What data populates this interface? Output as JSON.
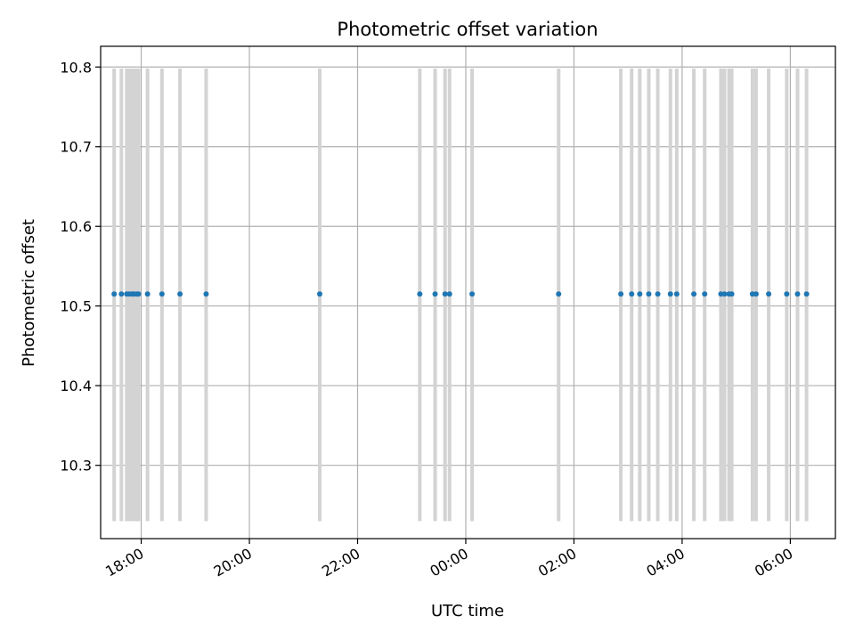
{
  "chart_data": {
    "type": "scatter",
    "title": "Photometric offset variation",
    "xlabel": "UTC time",
    "ylabel": "Photometric offset",
    "x_axis_type": "time",
    "x_date_format": "HH:MM",
    "xlim": [
      "17:15",
      "06:50"
    ],
    "ylim": [
      10.208,
      10.826
    ],
    "x_ticks": [
      "18:00",
      "20:00",
      "22:00",
      "00:00",
      "02:00",
      "04:00",
      "06:00"
    ],
    "y_ticks": [
      "10.3",
      "10.4",
      "10.5",
      "10.6",
      "10.7",
      "10.8"
    ],
    "grid": true,
    "x_tick_rotation": 30,
    "legend": false,
    "colors": {
      "points": "#1f77b4",
      "bands": "#d3d3d3",
      "grid": "#b0b0b0",
      "axes": "#000000"
    },
    "band_range": [
      10.23,
      10.798
    ],
    "series": [
      {
        "x": [
          "17:30",
          "17:38",
          "17:44",
          "17:47",
          "17:50",
          "17:52",
          "17:55",
          "17:57",
          "18:07",
          "18:23",
          "18:43",
          "19:12",
          "21:18",
          "23:09",
          "23:26",
          "23:37",
          "23:42",
          "24:07",
          "25:43",
          "26:52",
          "27:04",
          "27:13",
          "27:23",
          "27:33",
          "27:47",
          "27:54",
          "28:13",
          "28:25",
          "28:43",
          "28:47",
          "28:52",
          "28:55",
          "29:18",
          "29:22",
          "29:36",
          "29:56",
          "30:08",
          "30:18"
        ],
        "y": [
          10.515,
          10.515,
          10.515,
          10.515,
          10.515,
          10.515,
          10.515,
          10.515,
          10.515,
          10.515,
          10.515,
          10.515,
          10.515,
          10.515,
          10.515,
          10.515,
          10.515,
          10.515,
          10.515,
          10.515,
          10.515,
          10.515,
          10.515,
          10.515,
          10.515,
          10.515,
          10.515,
          10.515,
          10.515,
          10.515,
          10.515,
          10.515,
          10.515,
          10.515,
          10.515,
          10.515,
          10.515,
          10.515
        ]
      }
    ]
  }
}
